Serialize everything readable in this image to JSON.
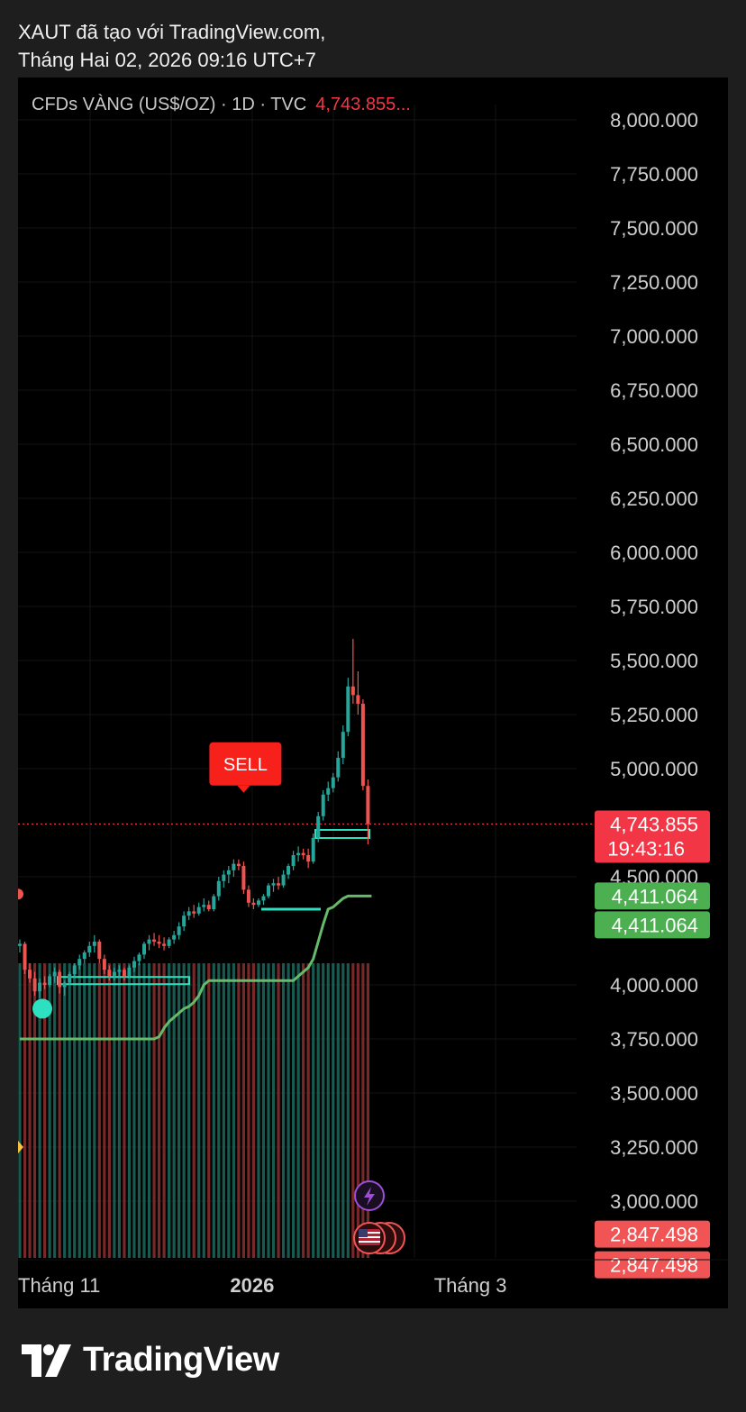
{
  "header": {
    "line1": "XAUT đã tạo với TradingView.com,",
    "line2": "Tháng Hai 02, 2026 09:16 UTC+7"
  },
  "ticker": {
    "label": "CFDs VÀNG (US$/OZ) · 1D · TVC",
    "price": "4,743.855..."
  },
  "footer": {
    "brand": "TradingView"
  },
  "colors": {
    "up": "#26a69a",
    "down": "#ef5350",
    "trail": "#66bb6a",
    "cyan": "#2de0c0",
    "sell": "#f7201b",
    "priceLine": "#f23645",
    "greenTag": "#4caf50",
    "redTag": "#f05454",
    "purple": "#9c4fd6"
  },
  "chart_data": {
    "type": "candlestick",
    "title": "",
    "xlabel": "",
    "ylabel": "",
    "ylim": [
      2750,
      8250
    ],
    "y_ticks": [
      "8,000.000",
      "7,750.000",
      "7,500.000",
      "7,250.000",
      "7,000.000",
      "6,750.000",
      "6,500.000",
      "6,250.000",
      "6,000.000",
      "5,750.000",
      "5,500.000",
      "5,250.000",
      "5,000.000",
      "4,500.000",
      "4,000.000",
      "3,750.000",
      "3,500.000",
      "3,250.000",
      "3,000.000"
    ],
    "y_tick_values": [
      8000,
      7750,
      7500,
      7250,
      7000,
      6750,
      6500,
      6250,
      6000,
      5750,
      5500,
      5250,
      5000,
      4500,
      4000,
      3750,
      3500,
      3250,
      3000
    ],
    "x_labels": [
      {
        "label": "Tháng 11",
        "bar": 0
      },
      {
        "label": "2026",
        "bar": 45
      },
      {
        "label": "Tháng 3",
        "bar": 86
      }
    ],
    "last_price": 4743.855,
    "last_price_label": "4,743.855",
    "countdown": "19:43:16",
    "price_tags": [
      {
        "label": "4,411.064",
        "value": 4411.064,
        "color": "green"
      },
      {
        "label": "4,411.064",
        "value": 4411.064,
        "color": "green"
      },
      {
        "label": "2,847.498",
        "value": 2847.498,
        "color": "red"
      },
      {
        "label": "2,847.498",
        "value": 2800,
        "color": "red"
      }
    ],
    "signals": [
      {
        "label": "SELL",
        "bar": 45,
        "value": 4880
      }
    ],
    "trailing_stop": [
      3750,
      3750,
      3750,
      3750,
      3750,
      3750,
      3750,
      3750,
      3750,
      3750,
      3750,
      3750,
      3750,
      3750,
      3750,
      3750,
      3750,
      3750,
      3750,
      3750,
      3750,
      3750,
      3750,
      3750,
      3750,
      3750,
      3750,
      3750,
      3760,
      3800,
      3830,
      3850,
      3870,
      3890,
      3900,
      3920,
      3950,
      4000,
      4020,
      4020,
      4020,
      4020,
      4020,
      4020,
      4020,
      4020,
      4020,
      4020,
      4020,
      4020,
      4020,
      4020,
      4020,
      4020,
      4020,
      4020,
      4040,
      4060,
      4080,
      4120,
      4200,
      4280,
      4350,
      4360,
      4380,
      4400,
      4411,
      4411
    ],
    "series": [
      {
        "name": "",
        "values": [
          [
            4180,
            4210,
            4150,
            4190
          ],
          [
            4190,
            4200,
            4050,
            4070
          ],
          [
            4070,
            4100,
            4010,
            4030
          ],
          [
            4030,
            4060,
            3950,
            3970
          ],
          [
            3970,
            4030,
            3940,
            4010
          ],
          [
            4010,
            4040,
            3980,
            4000
          ],
          [
            4000,
            4050,
            3990,
            4040
          ],
          [
            4040,
            4080,
            4010,
            4060
          ],
          [
            4060,
            4070,
            3960,
            3990
          ],
          [
            3990,
            4020,
            3950,
            4010
          ],
          [
            4010,
            4060,
            4000,
            4050
          ],
          [
            4050,
            4100,
            4030,
            4090
          ],
          [
            4090,
            4140,
            4070,
            4120
          ],
          [
            4120,
            4160,
            4100,
            4150
          ],
          [
            4150,
            4200,
            4130,
            4180
          ],
          [
            4180,
            4230,
            4150,
            4200
          ],
          [
            4200,
            4210,
            4100,
            4120
          ],
          [
            4120,
            4140,
            4050,
            4070
          ],
          [
            4070,
            4090,
            4020,
            4040
          ],
          [
            4040,
            4080,
            4020,
            4060
          ],
          [
            4060,
            4090,
            4030,
            4070
          ],
          [
            4070,
            4080,
            4020,
            4040
          ],
          [
            4040,
            4090,
            4030,
            4080
          ],
          [
            4080,
            4130,
            4060,
            4110
          ],
          [
            4110,
            4150,
            4090,
            4140
          ],
          [
            4140,
            4200,
            4120,
            4190
          ],
          [
            4190,
            4230,
            4160,
            4210
          ],
          [
            4210,
            4240,
            4180,
            4200
          ],
          [
            4200,
            4230,
            4170,
            4190
          ],
          [
            4190,
            4220,
            4160,
            4180
          ],
          [
            4180,
            4220,
            4170,
            4210
          ],
          [
            4210,
            4250,
            4190,
            4230
          ],
          [
            4230,
            4290,
            4210,
            4270
          ],
          [
            4270,
            4340,
            4250,
            4320
          ],
          [
            4320,
            4360,
            4300,
            4340
          ],
          [
            4340,
            4370,
            4310,
            4330
          ],
          [
            4330,
            4380,
            4320,
            4360
          ],
          [
            4360,
            4400,
            4340,
            4370
          ],
          [
            4370,
            4390,
            4340,
            4350
          ],
          [
            4350,
            4420,
            4340,
            4410
          ],
          [
            4410,
            4500,
            4390,
            4480
          ],
          [
            4480,
            4530,
            4450,
            4510
          ],
          [
            4510,
            4550,
            4470,
            4530
          ],
          [
            4530,
            4580,
            4500,
            4560
          ],
          [
            4560,
            4580,
            4530,
            4550
          ],
          [
            4550,
            4570,
            4420,
            4440
          ],
          [
            4440,
            4460,
            4360,
            4380
          ],
          [
            4380,
            4400,
            4350,
            4370
          ],
          [
            4370,
            4400,
            4360,
            4390
          ],
          [
            4390,
            4420,
            4370,
            4410
          ],
          [
            4410,
            4470,
            4400,
            4460
          ],
          [
            4460,
            4490,
            4430,
            4470
          ],
          [
            4470,
            4500,
            4440,
            4460
          ],
          [
            4460,
            4530,
            4450,
            4510
          ],
          [
            4510,
            4560,
            4490,
            4550
          ],
          [
            4550,
            4620,
            4530,
            4600
          ],
          [
            4600,
            4640,
            4570,
            4610
          ],
          [
            4610,
            4630,
            4580,
            4600
          ],
          [
            4600,
            4630,
            4540,
            4570
          ],
          [
            4570,
            4700,
            4560,
            4680
          ],
          [
            4680,
            4800,
            4660,
            4780
          ],
          [
            4780,
            4900,
            4760,
            4880
          ],
          [
            4880,
            4940,
            4850,
            4910
          ],
          [
            4910,
            4980,
            4890,
            4960
          ],
          [
            4960,
            5080,
            4940,
            5050
          ],
          [
            5050,
            5200,
            5020,
            5170
          ],
          [
            5170,
            5420,
            5150,
            5380
          ],
          [
            5380,
            5600,
            5300,
            5340
          ],
          [
            5340,
            5450,
            5250,
            5300
          ],
          [
            5300,
            5320,
            4900,
            4920
          ],
          [
            4920,
            4950,
            4650,
            4743.855
          ]
        ]
      }
    ]
  }
}
